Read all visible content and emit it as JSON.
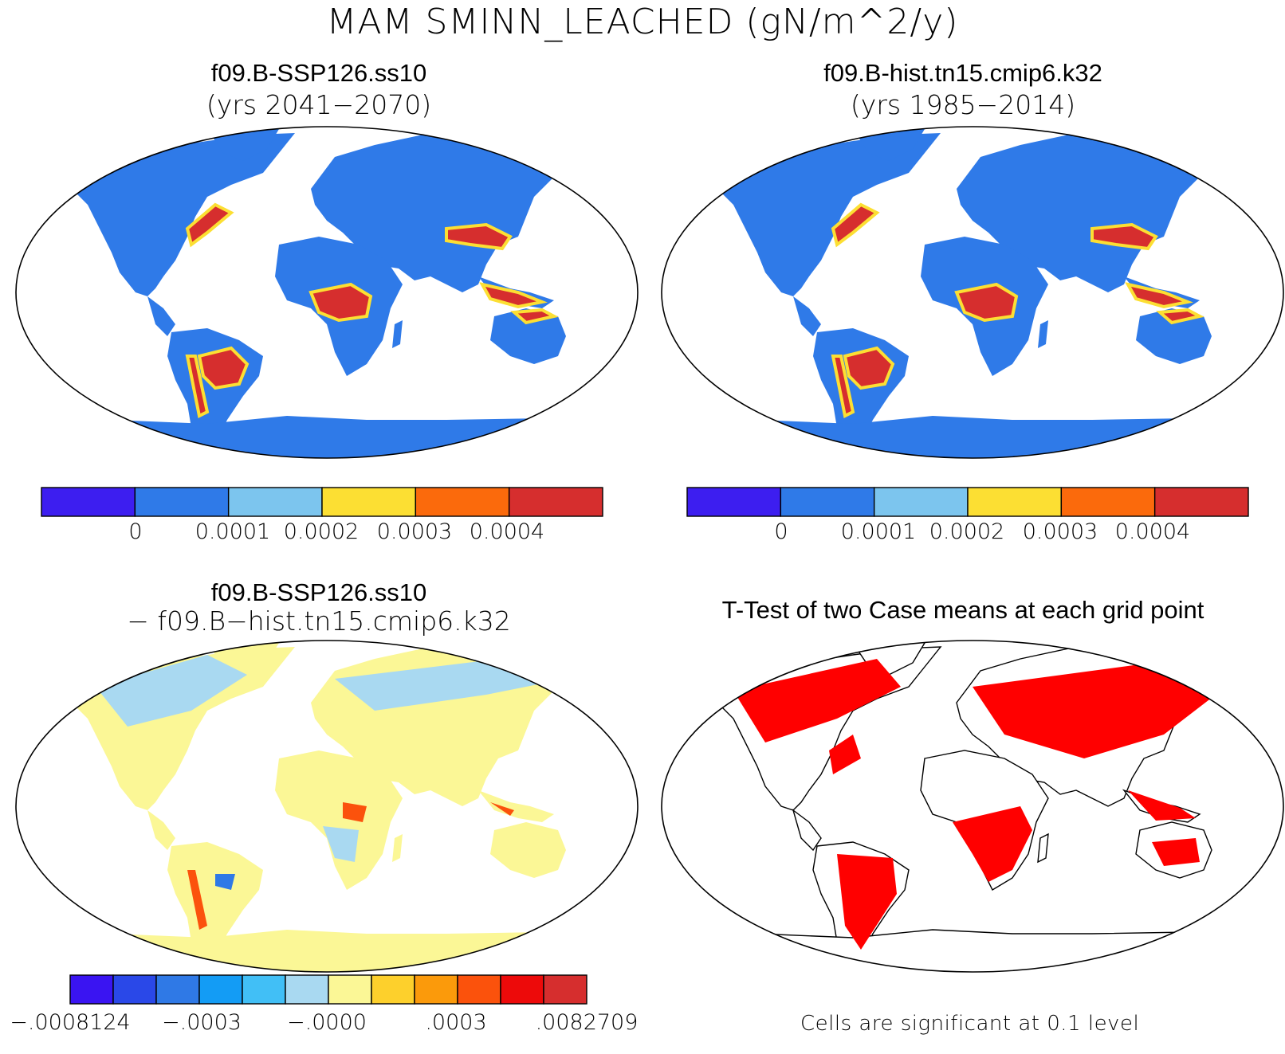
{
  "title": "MAM SMINN_LEACHED (gN/m^2/y)",
  "panels": {
    "top_left": {
      "title": "f09.B-SSP126.ss10",
      "subtitle": "(yrs 2041−2070)"
    },
    "top_right": {
      "title": "f09.B-hist.tn15.cmip6.k32",
      "subtitle": "(yrs 1985−2014)"
    },
    "bottom_left": {
      "title": "f09.B-SSP126.ss10",
      "subtitle": "− f09.B−hist.tn15.cmip6.k32"
    },
    "bottom_right": {
      "title": "T-Test of two Case means at each grid point",
      "note": "Cells are significant at 0.1 level"
    }
  },
  "colorbars": {
    "case": {
      "colors": [
        "#3d1ef0",
        "#2f7ae8",
        "#7cc5ee",
        "#fcdf33",
        "#fb6a0c",
        "#d62e2e"
      ],
      "labels": [
        "0",
        "0.0001",
        "0.0002",
        "0.0003",
        "0.0004"
      ]
    },
    "diff": {
      "colors": [
        "#3a14f2",
        "#2a48e8",
        "#2f79e6",
        "#139cf5",
        "#41bff6",
        "#a9d9f1",
        "#fbf796",
        "#fdd02c",
        "#fb9a0b",
        "#fb520c",
        "#ed0a0a",
        "#d62e2e"
      ],
      "labels": [
        "−.0008124",
        "−.0003",
        "−.0000",
        ".0003",
        ".0082709"
      ]
    }
  },
  "fills": {
    "land_case": "#2f7ae8",
    "land_diff": "#fbf796",
    "ttest_signif": "#ff0000"
  }
}
